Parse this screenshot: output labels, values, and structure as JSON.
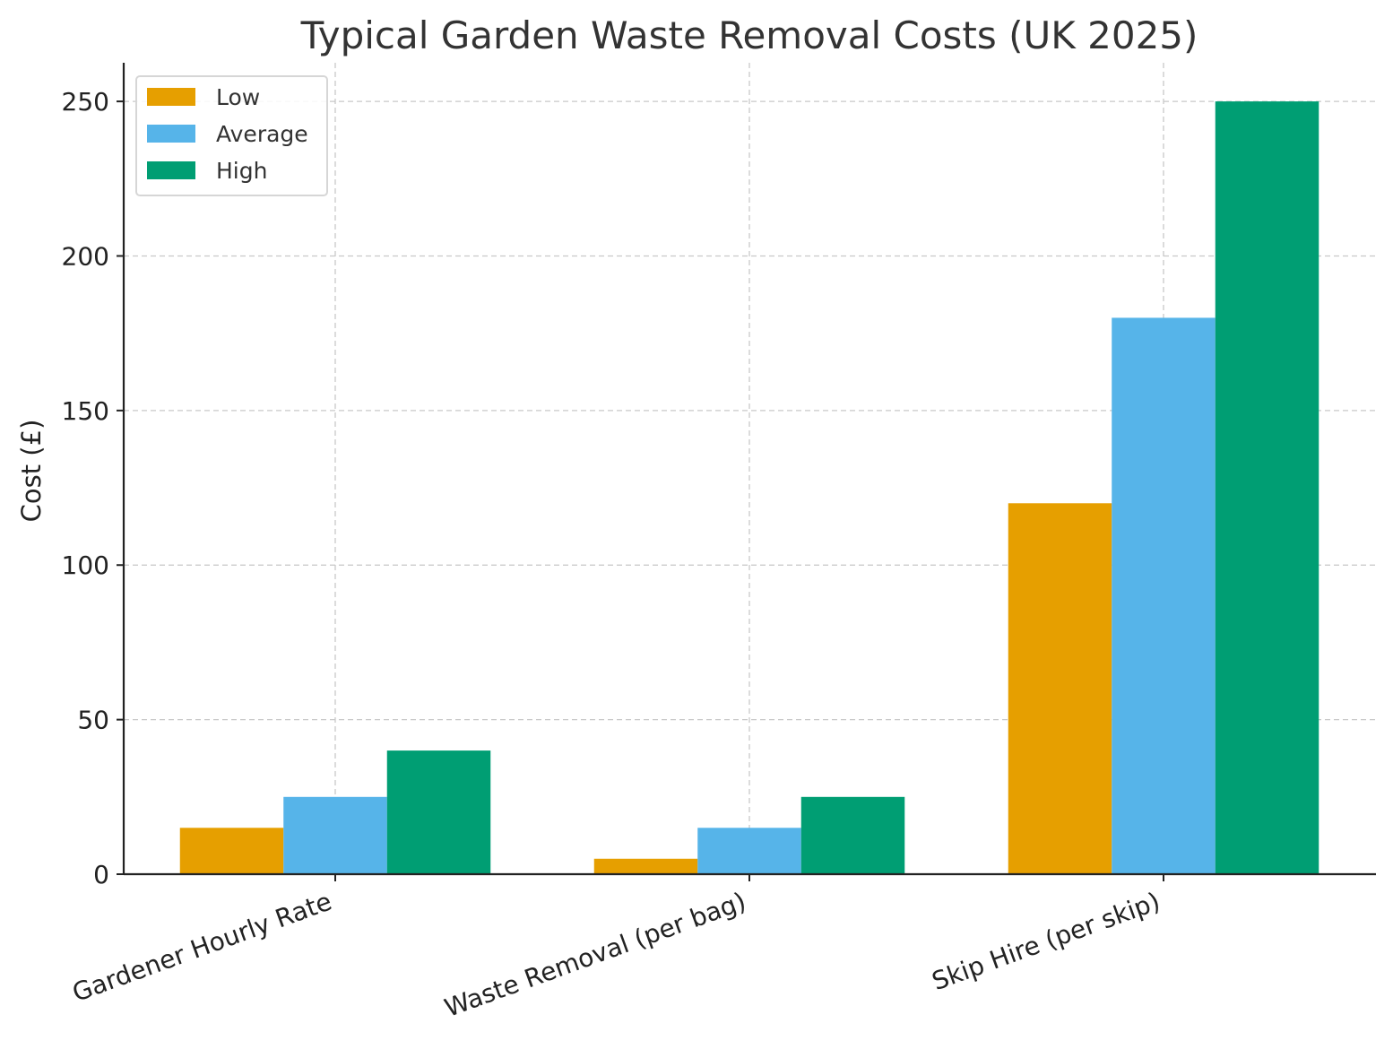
{
  "chart_data": {
    "type": "bar",
    "title": "Typical Garden Waste Removal Costs (UK 2025)",
    "xlabel": "",
    "ylabel": "Cost (£)",
    "categories": [
      "Gardener Hourly Rate",
      "Waste Removal (per bag)",
      "Skip Hire (per skip)"
    ],
    "series": [
      {
        "name": "Low",
        "color": "#E69F00",
        "values": [
          15,
          5,
          120
        ]
      },
      {
        "name": "Average",
        "color": "#56B4E9",
        "values": [
          25,
          15,
          180
        ]
      },
      {
        "name": "High",
        "color": "#009E73",
        "values": [
          40,
          25,
          250
        ]
      }
    ],
    "ylim": [
      0,
      262.5
    ],
    "yticks": [
      0,
      50,
      100,
      150,
      200,
      250
    ],
    "grid": true,
    "legend_position": "top-left"
  }
}
